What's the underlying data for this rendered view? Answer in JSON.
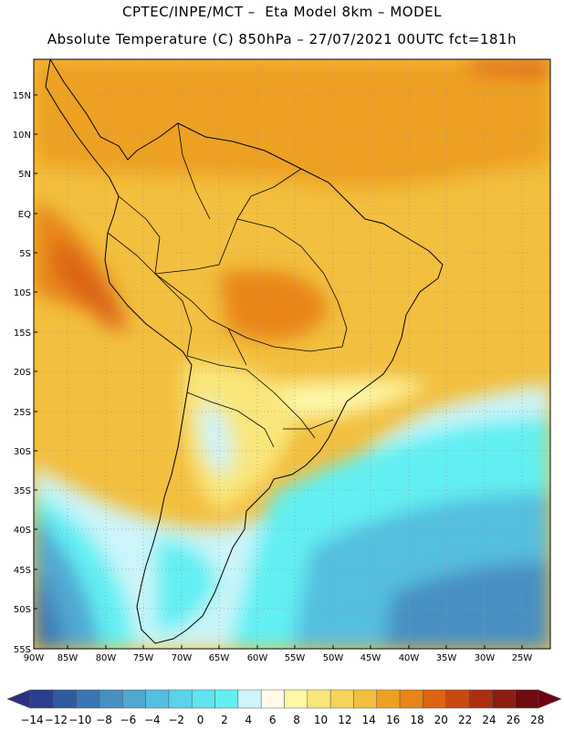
{
  "header": {
    "line1": "CPTEC/INPE/MCT –  Eta Model 8km – MODEL",
    "line2": "Absolute Temperature (C) 850hPa – 27/07/2021 00UTC fct=181h"
  },
  "map": {
    "lat_labels": [
      "15N",
      "10N",
      "5N",
      "EQ",
      "5S",
      "10S",
      "15S",
      "20S",
      "25S",
      "30S",
      "35S",
      "40S",
      "45S",
      "50S",
      "55S"
    ],
    "lon_labels": [
      "90W",
      "85W",
      "80W",
      "75W",
      "70W",
      "65W",
      "60W",
      "55W",
      "50W",
      "45W",
      "40W",
      "35W",
      "30W",
      "25W"
    ]
  },
  "colorbar": {
    "labels": [
      "-14",
      "-12",
      "-10",
      "-8",
      "-6",
      "-4",
      "-2",
      "0",
      "2",
      "4",
      "6",
      "8",
      "10",
      "12",
      "14",
      "16",
      "18",
      "20",
      "22",
      "24",
      "26",
      "28"
    ],
    "colors": [
      "#2a3f8f",
      "#2f5b9e",
      "#3a76b4",
      "#4690c4",
      "#4fa7d2",
      "#55bfdf",
      "#5ad2e8",
      "#5fe3ee",
      "#63f0f2",
      "#cdf5fa",
      "#fffbe8",
      "#fdf7a6",
      "#f9e77c",
      "#f6d45a",
      "#f3bf3e",
      "#eea120",
      "#e88516",
      "#dc6412",
      "#c94a10",
      "#ad3010",
      "#8c1d10",
      "#6e0d0d"
    ],
    "low_arrow_color": "#2a2f7e",
    "high_arrow_color": "#6e0012"
  }
}
